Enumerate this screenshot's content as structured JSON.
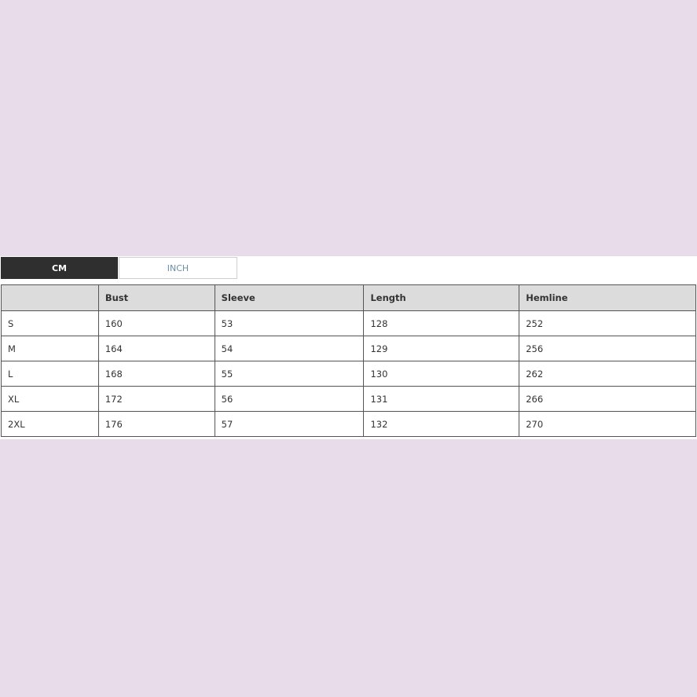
{
  "units": {
    "tabs": [
      {
        "label": "CM",
        "active": true
      },
      {
        "label": "INCH",
        "active": false
      }
    ]
  },
  "table": {
    "headers": [
      "",
      "Bust",
      "Sleeve",
      "Length",
      "Hemline"
    ],
    "rows": [
      [
        "S",
        "160",
        "53",
        "128",
        "252"
      ],
      [
        "M",
        "164",
        "54",
        "129",
        "256"
      ],
      [
        "L",
        "168",
        "55",
        "130",
        "262"
      ],
      [
        "XL",
        "172",
        "56",
        "131",
        "266"
      ],
      [
        "2XL",
        "176",
        "57",
        "132",
        "270"
      ]
    ]
  }
}
